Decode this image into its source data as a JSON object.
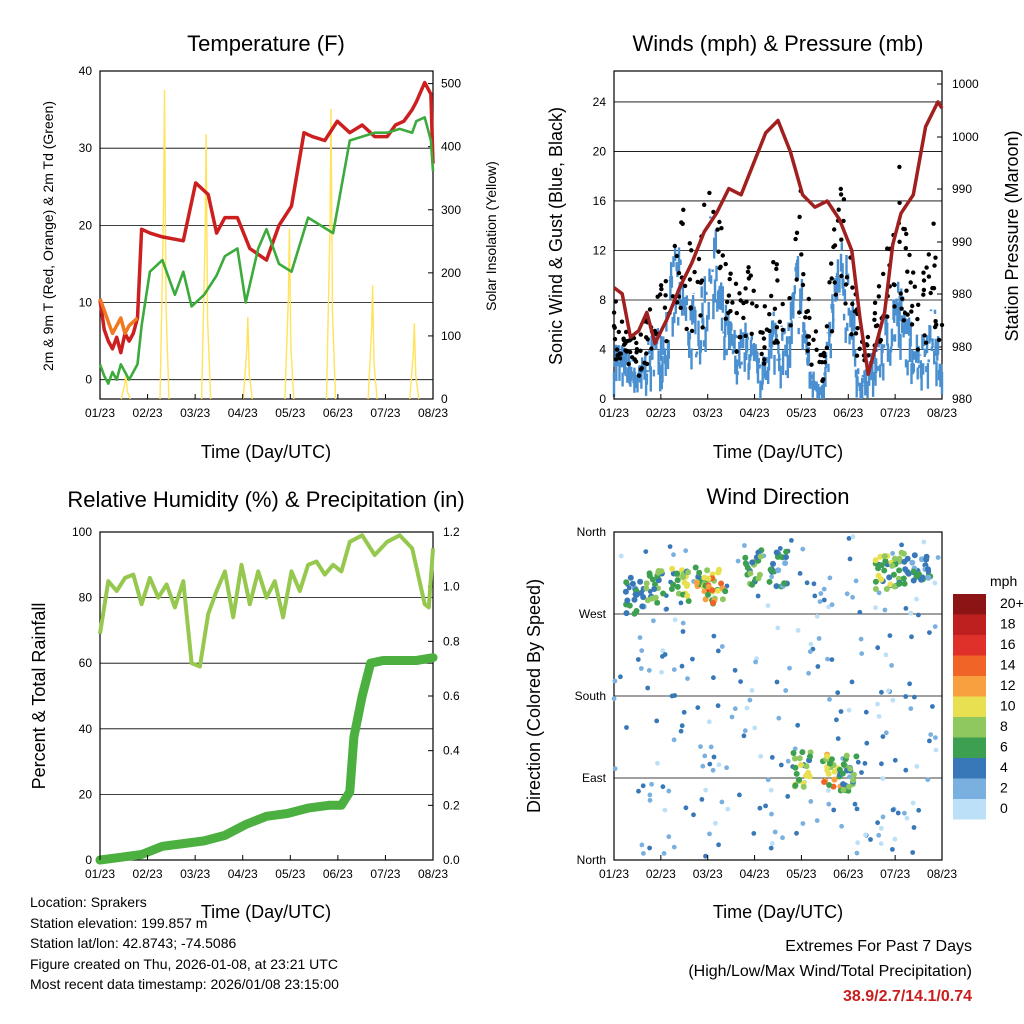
{
  "chart_data": [
    {
      "id": "temp",
      "type": "line",
      "title": "Temperature (F)",
      "xlabel": "Time (Day/UTC)",
      "ylabel": "2m & 9m T (Red, Orange) & 2m Td (Green)",
      "ylabel_right": "Solar Insolation (Yellow)",
      "x_ticks": [
        "01/23",
        "02/23",
        "03/23",
        "04/23",
        "05/23",
        "06/23",
        "07/23",
        "08/23"
      ],
      "ylim": [
        -2.5,
        40
      ],
      "y_ticks": [
        0,
        10,
        20,
        30,
        40
      ],
      "ylim_right": [
        0,
        520
      ],
      "y_ticks_right": [
        0,
        100,
        200,
        300,
        400,
        500
      ],
      "series": [
        {
          "name": "2m T",
          "color": "#cc2020",
          "x": [
            0,
            0.05,
            0.1,
            0.2,
            0.3,
            0.4,
            0.5,
            0.6,
            0.7,
            0.8,
            0.9,
            1.0,
            1.2,
            1.5,
            2.0,
            2.3,
            2.6,
            2.8,
            3.0,
            3.3,
            3.6,
            4.0,
            4.3,
            4.6,
            4.9,
            5.1,
            5.4,
            5.7,
            6.0,
            6.3,
            6.6,
            6.9,
            7.1,
            7.3,
            7.5,
            7.6,
            7.8,
            7.95,
            8.0
          ],
          "values": [
            10.3,
            8.5,
            6.5,
            5,
            4,
            5.5,
            3.5,
            6,
            5,
            6,
            8,
            19.5,
            19,
            18.5,
            18,
            25.5,
            24,
            19,
            21,
            21,
            17,
            15.5,
            20,
            22.5,
            32,
            31.5,
            31,
            33.5,
            32,
            33,
            31.5,
            31.5,
            33,
            33.5,
            35,
            36,
            38.5,
            37,
            28
          ]
        },
        {
          "name": "9m T",
          "color": "#f07820",
          "x": [
            0,
            0.1,
            0.2,
            0.3,
            0.4,
            0.5,
            0.6,
            0.7,
            0.8,
            0.9
          ],
          "values": [
            10.5,
            9,
            7.5,
            6,
            7,
            8,
            6,
            7,
            7.5,
            8
          ]
        },
        {
          "name": "2m Td",
          "color": "#3caa3c",
          "x": [
            0,
            0.1,
            0.2,
            0.3,
            0.4,
            0.5,
            0.6,
            0.7,
            0.8,
            0.9,
            1.0,
            1.2,
            1.5,
            1.8,
            2.0,
            2.2,
            2.5,
            2.8,
            3.0,
            3.3,
            3.5,
            3.8,
            4.0,
            4.3,
            4.6,
            5.0,
            5.3,
            5.6,
            6.0,
            6.3,
            6.6,
            6.9,
            7.2,
            7.5,
            7.6,
            7.8,
            7.95,
            8.0
          ],
          "values": [
            2,
            0.5,
            -0.5,
            1,
            0,
            2,
            1,
            0,
            1,
            2,
            7,
            14,
            15.5,
            11,
            14,
            9.5,
            11,
            13.5,
            16,
            17,
            10,
            17,
            19.5,
            15,
            14,
            21,
            20,
            19,
            31,
            31.5,
            32,
            32,
            32.5,
            32,
            33.5,
            34,
            31,
            27
          ]
        }
      ],
      "insolation": {
        "name": "Solar Insolation",
        "color": "#ffe35a",
        "peaks": [
          {
            "day": 0.62,
            "value": 40
          },
          {
            "day": 1.55,
            "value": 490
          },
          {
            "day": 2.55,
            "value": 420
          },
          {
            "day": 3.55,
            "value": 130
          },
          {
            "day": 4.55,
            "value": 270
          },
          {
            "day": 5.55,
            "value": 460
          },
          {
            "day": 6.55,
            "value": 180
          },
          {
            "day": 7.55,
            "value": 120
          }
        ]
      }
    },
    {
      "id": "wind",
      "type": "scatter",
      "title": "Winds (mph) & Pressure (mb)",
      "xlabel": "Time (Day/UTC)",
      "ylabel": "Sonic Wind & Gust (Blue, Black)",
      "ylabel_right": "Station Pressure (Maroon)",
      "x_ticks": [
        "01/23",
        "02/23",
        "03/23",
        "04/23",
        "05/23",
        "06/23",
        "07/23",
        "08/23"
      ],
      "ylim": [
        0,
        26.5
      ],
      "y_ticks": [
        0,
        4,
        8,
        12,
        16,
        20,
        24
      ],
      "y_ticks_right": [
        "980",
        "980",
        "980",
        "990",
        "990",
        "1000",
        "1000"
      ],
      "series": [
        {
          "name": "Sonic Wind",
          "color": "#4a90d0",
          "x": [
            0,
            0.3,
            0.6,
            0.9,
            1.2,
            1.5,
            1.8,
            2.1,
            2.4,
            2.7,
            3.0,
            3.3,
            3.6,
            3.9,
            4.2,
            4.5,
            4.8,
            5.1,
            5.4,
            5.7,
            6.0,
            6.3,
            6.6,
            6.9,
            7.2,
            7.5,
            7.8,
            8.0
          ],
          "values": [
            4,
            3,
            2,
            4,
            5,
            10,
            7,
            6,
            12,
            6,
            4,
            5,
            2,
            6,
            4,
            10,
            2,
            1,
            9,
            10,
            1,
            3,
            5,
            8,
            5,
            4,
            6,
            2
          ]
        },
        {
          "name": "Gust",
          "color": "#000000",
          "x": [
            0,
            0.3,
            0.6,
            0.9,
            1.2,
            1.5,
            1.8,
            2.1,
            2.4,
            2.7,
            3.0,
            3.3,
            3.6,
            3.9,
            4.2,
            4.5,
            4.8,
            5.1,
            5.4,
            5.7,
            6.0,
            6.3,
            6.6,
            6.9,
            7.2,
            7.5,
            7.8,
            8.0
          ],
          "values": [
            7,
            5,
            4,
            7,
            8,
            15,
            12,
            10,
            20,
            11,
            8,
            9,
            5,
            10,
            8,
            16,
            6,
            3,
            14,
            15,
            4,
            6,
            9,
            18,
            10,
            8,
            12,
            5
          ]
        },
        {
          "name": "Station Pressure",
          "color": "#a02020",
          "x": [
            0,
            0.2,
            0.4,
            0.6,
            0.8,
            1.0,
            1.3,
            1.6,
            1.9,
            2.2,
            2.5,
            2.8,
            3.1,
            3.4,
            3.7,
            4.0,
            4.3,
            4.6,
            4.9,
            5.2,
            5.5,
            5.8,
            6.0,
            6.2,
            6.4,
            6.6,
            6.8,
            7.0,
            7.3,
            7.6,
            7.9,
            8.0
          ],
          "values": [
            9,
            8.5,
            5,
            5.5,
            7,
            4.5,
            6.5,
            9,
            11,
            13.5,
            15,
            17,
            16.5,
            19,
            21.5,
            22.5,
            20,
            16.5,
            15.5,
            16,
            14.5,
            12,
            6.5,
            2,
            4.5,
            7,
            12.5,
            15,
            16.5,
            22,
            24,
            23.5
          ]
        }
      ]
    },
    {
      "id": "rh",
      "type": "line",
      "title": "Relative Humidity (%) & Precipitation (in)",
      "xlabel": "Time (Day/UTC)",
      "ylabel": "Percent & Total Rainfall",
      "x_ticks": [
        "01/23",
        "02/23",
        "03/23",
        "04/23",
        "05/23",
        "06/23",
        "07/23",
        "08/23"
      ],
      "ylim": [
        0,
        100
      ],
      "y_ticks": [
        0,
        20,
        40,
        60,
        80,
        100
      ],
      "y_ticks_right": [
        "0.0",
        "0.2",
        "0.4",
        "0.6",
        "0.8",
        "1.0",
        "1.2"
      ],
      "series": [
        {
          "name": "Relative Humidity",
          "color": "#96c850",
          "x": [
            0,
            0.2,
            0.4,
            0.6,
            0.8,
            1.0,
            1.2,
            1.4,
            1.6,
            1.8,
            2.0,
            2.2,
            2.4,
            2.6,
            2.8,
            3.0,
            3.2,
            3.4,
            3.6,
            3.8,
            4.0,
            4.2,
            4.4,
            4.6,
            4.8,
            5.0,
            5.2,
            5.4,
            5.6,
            5.8,
            6.0,
            6.3,
            6.6,
            6.9,
            7.2,
            7.5,
            7.8,
            7.9,
            8.0
          ],
          "values": [
            69,
            85,
            82,
            86,
            87,
            78,
            86,
            80,
            84,
            77,
            85,
            60,
            59,
            75,
            82,
            88,
            74,
            90,
            78,
            88,
            80,
            85,
            74,
            88,
            82,
            90,
            91,
            87,
            90,
            88,
            97,
            99,
            93,
            97,
            99,
            95,
            78,
            77,
            95
          ]
        },
        {
          "name": "Precipitation",
          "color": "#4cb040",
          "x": [
            0,
            0.5,
            1.0,
            1.5,
            2.0,
            2.5,
            3.0,
            3.5,
            4.0,
            4.5,
            5.0,
            5.5,
            5.8,
            6.0,
            6.1,
            6.3,
            6.5,
            6.8,
            7.2,
            7.6,
            8.0
          ],
          "values": [
            0,
            0.01,
            0.02,
            0.05,
            0.06,
            0.07,
            0.09,
            0.13,
            0.16,
            0.17,
            0.19,
            0.2,
            0.2,
            0.25,
            0.45,
            0.6,
            0.72,
            0.73,
            0.73,
            0.73,
            0.74
          ]
        }
      ]
    },
    {
      "id": "dir",
      "type": "scatter",
      "title": "Wind Direction",
      "xlabel": "Time (Day/UTC)",
      "ylabel": "Direction (Colored By Speed)",
      "x_ticks": [
        "01/23",
        "02/23",
        "03/23",
        "04/23",
        "05/23",
        "06/23",
        "07/23",
        "08/23"
      ],
      "y_ticks": [
        "North",
        "West",
        "South",
        "East",
        "North"
      ],
      "legend_title": "mph",
      "legend_labels": [
        "20+",
        "18",
        "16",
        "14",
        "12",
        "10",
        "8",
        "6",
        "4",
        "2",
        "0"
      ],
      "legend_colors": [
        "#8c1414",
        "#be2020",
        "#e0302a",
        "#f06428",
        "#f8a040",
        "#e8e050",
        "#90c860",
        "#3ca050",
        "#3878b8",
        "#7ab0e0",
        "#bce0f8"
      ],
      "clusters": [
        {
          "day": 0.5,
          "dir": 290,
          "speed": 6
        },
        {
          "day": 1.0,
          "dir": 300,
          "speed": 8
        },
        {
          "day": 1.6,
          "dir": 300,
          "speed": 10
        },
        {
          "day": 2.2,
          "dir": 305,
          "speed": 12
        },
        {
          "day": 2.5,
          "dir": 300,
          "speed": 14
        },
        {
          "day": 3.4,
          "dir": 320,
          "speed": 8
        },
        {
          "day": 4.0,
          "dir": 320,
          "speed": 6
        },
        {
          "day": 4.6,
          "dir": 100,
          "speed": 10
        },
        {
          "day": 5.3,
          "dir": 100,
          "speed": 12
        },
        {
          "day": 5.7,
          "dir": 95,
          "speed": 8
        },
        {
          "day": 6.6,
          "dir": 315,
          "speed": 10
        },
        {
          "day": 7.0,
          "dir": 320,
          "speed": 8
        },
        {
          "day": 7.5,
          "dir": 320,
          "speed": 6
        }
      ]
    }
  ],
  "info": {
    "location": "Location: Sprakers",
    "elevation": "Station elevation: 199.857 m",
    "latlon": "Station lat/lon: 42.8743; -74.5086",
    "created": "Figure created on Thu, 2026-01-08, at 23:21 UTC",
    "recent": "Most recent data timestamp: 2026/01/08 23:15:00"
  },
  "extremes": {
    "title": "Extremes For Past 7 Days",
    "subtitle": "(High/Low/Max Wind/Total Precipitation)",
    "values": "38.9/2.7/14.1/0.74"
  }
}
